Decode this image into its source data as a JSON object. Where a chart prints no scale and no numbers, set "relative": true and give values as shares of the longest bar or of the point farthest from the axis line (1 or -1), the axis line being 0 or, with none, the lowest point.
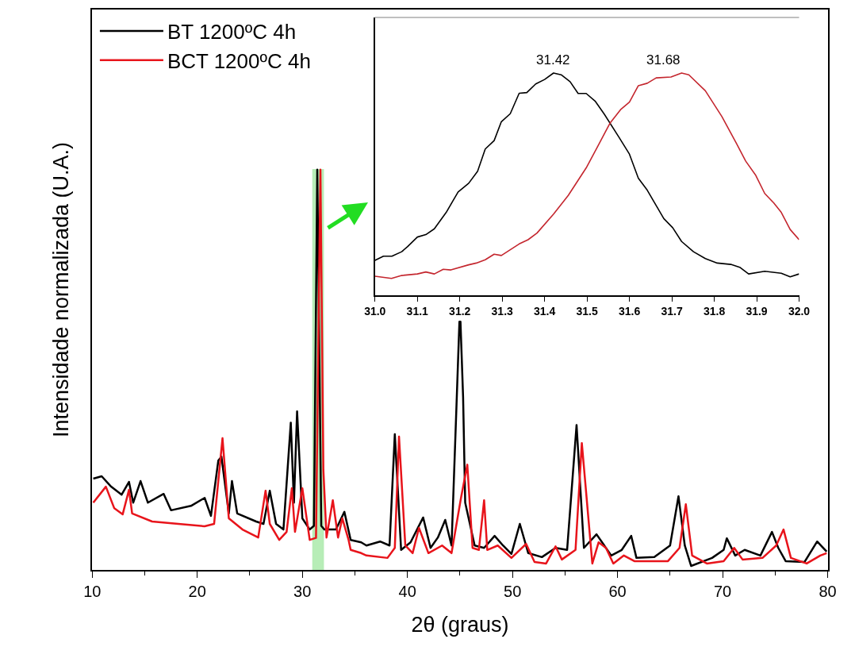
{
  "chart_data": [
    {
      "type": "line",
      "xlabel": "2θ (graus)",
      "ylabel": "Intensidade normalizada (U.A.)",
      "relative": true,
      "xlim": [
        10,
        80
      ],
      "xticks": [
        10,
        20,
        30,
        40,
        50,
        60,
        70,
        80
      ],
      "legend": "top left",
      "grid": false,
      "bands": [
        {
          "axis": "x",
          "from": 31,
          "to": 32,
          "color": "#33cc33"
        }
      ],
      "series": [
        {
          "name": "BT 1200ºC 4h",
          "color": "#000000",
          "x": [
            10.1,
            10.9,
            11.8,
            12.8,
            13.5,
            13.9,
            14.6,
            15.3,
            16.8,
            17.5,
            19.4,
            20.7,
            21.3,
            22.0,
            22.3,
            23.0,
            23.3,
            23.8,
            25.6,
            26.3,
            26.9,
            27.5,
            28.2,
            28.9,
            29.2,
            29.5,
            30.0,
            30.7,
            31.1,
            31.42,
            31.8,
            32.1,
            33.2,
            34.0,
            34.6,
            35.6,
            36.1,
            37.4,
            38.3,
            38.8,
            39.4,
            40.3,
            41.5,
            42.2,
            42.9,
            43.6,
            44.2,
            44.7,
            44.95,
            45.05,
            45.3,
            45.5,
            46.4,
            47.3,
            48.3,
            49.1,
            49.9,
            50.7,
            51.5,
            52.8,
            54.1,
            55.2,
            56.1,
            56.8,
            58.0,
            59.4,
            60.4,
            61.3,
            61.8,
            63.5,
            65.0,
            65.8,
            66.4,
            67.0,
            69.0,
            70.1,
            70.4,
            71.2,
            72.1,
            73.6,
            74.7,
            75.3,
            76.0,
            77.8,
            79.0,
            79.9
          ],
          "values": [
            0.228,
            0.234,
            0.208,
            0.188,
            0.22,
            0.168,
            0.222,
            0.168,
            0.19,
            0.149,
            0.16,
            0.18,
            0.135,
            0.273,
            0.283,
            0.141,
            0.222,
            0.141,
            0.121,
            0.115,
            0.198,
            0.115,
            0.101,
            0.368,
            0.168,
            0.396,
            0.129,
            0.101,
            0.11,
            1.0,
            0.11,
            0.101,
            0.101,
            0.145,
            0.075,
            0.069,
            0.061,
            0.071,
            0.061,
            0.339,
            0.05,
            0.069,
            0.131,
            0.055,
            0.081,
            0.125,
            0.061,
            0.432,
            0.62,
            0.62,
            0.432,
            0.168,
            0.061,
            0.055,
            0.085,
            0.061,
            0.04,
            0.115,
            0.042,
            0.032,
            0.055,
            0.05,
            0.362,
            0.055,
            0.089,
            0.036,
            0.05,
            0.085,
            0.03,
            0.032,
            0.061,
            0.184,
            0.061,
            0.01,
            0.03,
            0.05,
            0.079,
            0.036,
            0.05,
            0.036,
            0.095,
            0.055,
            0.022,
            0.02,
            0.071,
            0.046
          ]
        },
        {
          "name": "BCT 1200ºC 4h",
          "color": "#e8141b",
          "x": [
            10.1,
            11.3,
            12.1,
            12.9,
            13.5,
            13.8,
            15.7,
            18.2,
            20.7,
            21.6,
            22.4,
            23.0,
            24.3,
            25.8,
            26.5,
            26.9,
            27.8,
            28.5,
            29.0,
            29.3,
            30.0,
            30.7,
            31.3,
            31.72,
            32.0,
            32.3,
            32.9,
            33.4,
            33.8,
            34.4,
            34.6,
            35.6,
            36.1,
            38.1,
            38.8,
            39.2,
            39.8,
            40.5,
            41.1,
            42.0,
            43.3,
            44.2,
            45.1,
            45.7,
            46.2,
            46.8,
            47.3,
            47.6,
            48.6,
            49.9,
            51.3,
            52.1,
            53.2,
            54.1,
            54.7,
            56.0,
            56.6,
            57.6,
            58.2,
            58.9,
            59.6,
            60.6,
            61.6,
            63.1,
            64.8,
            65.9,
            66.5,
            67.1,
            68.5,
            70.1,
            71.1,
            71.9,
            73.8,
            75.1,
            75.8,
            76.5,
            78.0,
            79.3,
            79.9
          ],
          "values": [
            0.168,
            0.208,
            0.154,
            0.139,
            0.2,
            0.141,
            0.121,
            0.115,
            0.109,
            0.115,
            0.329,
            0.129,
            0.101,
            0.081,
            0.198,
            0.115,
            0.075,
            0.095,
            0.204,
            0.095,
            0.204,
            0.075,
            0.08,
            1.0,
            0.25,
            0.081,
            0.174,
            0.081,
            0.129,
            0.075,
            0.05,
            0.042,
            0.036,
            0.03,
            0.055,
            0.333,
            0.061,
            0.042,
            0.105,
            0.042,
            0.061,
            0.042,
            0.18,
            0.263,
            0.055,
            0.05,
            0.174,
            0.05,
            0.061,
            0.03,
            0.065,
            0.02,
            0.016,
            0.059,
            0.026,
            0.05,
            0.317,
            0.016,
            0.069,
            0.055,
            0.016,
            0.036,
            0.022,
            0.022,
            0.022,
            0.055,
            0.164,
            0.036,
            0.016,
            0.022,
            0.055,
            0.026,
            0.03,
            0.061,
            0.101,
            0.03,
            0.016,
            0.036,
            0.042
          ]
        }
      ]
    },
    {
      "type": "line",
      "relative": true,
      "xlim": [
        31.0,
        32.0
      ],
      "xticks": [
        {
          "value": 31.0,
          "label": "31.0"
        },
        31.1,
        31.2,
        31.3,
        31.4,
        31.5,
        31.6,
        31.7,
        31.8,
        31.9,
        {
          "value": 32.0,
          "label": "32.0"
        }
      ],
      "grid": false,
      "annotations": [
        {
          "text": "31.42",
          "x": 31.42,
          "y": 1.0
        },
        {
          "text": "31.68",
          "x": 31.68,
          "y": 1.0
        }
      ],
      "series": [
        {
          "color": "#000000",
          "x": [
            31.0,
            31.02,
            31.04,
            31.063,
            31.077,
            31.1,
            31.12,
            31.14,
            31.168,
            31.196,
            31.221,
            31.242,
            31.26,
            31.281,
            31.298,
            31.319,
            31.34,
            31.358,
            31.379,
            31.4,
            31.421,
            31.439,
            31.46,
            31.479,
            31.498,
            31.519,
            31.54,
            31.575,
            31.6,
            31.621,
            31.642,
            31.663,
            31.681,
            31.702,
            31.723,
            31.751,
            31.779,
            31.807,
            31.839,
            31.86,
            31.881,
            31.919,
            31.958,
            31.979,
            32.0
          ],
          "values": [
            0.157,
            0.176,
            0.176,
            0.196,
            0.219,
            0.262,
            0.273,
            0.299,
            0.373,
            0.465,
            0.504,
            0.558,
            0.658,
            0.696,
            0.781,
            0.817,
            0.909,
            0.912,
            0.951,
            0.971,
            1.0,
            0.992,
            0.961,
            0.908,
            0.908,
            0.874,
            0.817,
            0.712,
            0.635,
            0.527,
            0.473,
            0.404,
            0.345,
            0.304,
            0.242,
            0.196,
            0.165,
            0.145,
            0.139,
            0.126,
            0.096,
            0.108,
            0.099,
            0.083,
            0.096
          ]
        },
        {
          "color": "#c4262e",
          "x": [
            31.0,
            31.039,
            31.063,
            31.1,
            31.12,
            31.14,
            31.161,
            31.179,
            31.221,
            31.239,
            31.26,
            31.281,
            31.298,
            31.34,
            31.361,
            31.382,
            31.421,
            31.456,
            31.498,
            31.526,
            31.554,
            31.579,
            31.6,
            31.621,
            31.642,
            31.663,
            31.698,
            31.723,
            31.74,
            31.779,
            31.818,
            31.853,
            31.874,
            31.898,
            31.919,
            31.94,
            31.958,
            31.979,
            32.0
          ],
          "values": [
            0.086,
            0.076,
            0.089,
            0.096,
            0.105,
            0.096,
            0.117,
            0.114,
            0.137,
            0.145,
            0.16,
            0.185,
            0.179,
            0.231,
            0.25,
            0.28,
            0.365,
            0.45,
            0.573,
            0.673,
            0.774,
            0.835,
            0.869,
            0.943,
            0.954,
            0.978,
            0.982,
            1.0,
            0.992,
            0.92,
            0.804,
            0.681,
            0.604,
            0.539,
            0.458,
            0.416,
            0.373,
            0.296,
            0.25
          ]
        }
      ]
    }
  ]
}
